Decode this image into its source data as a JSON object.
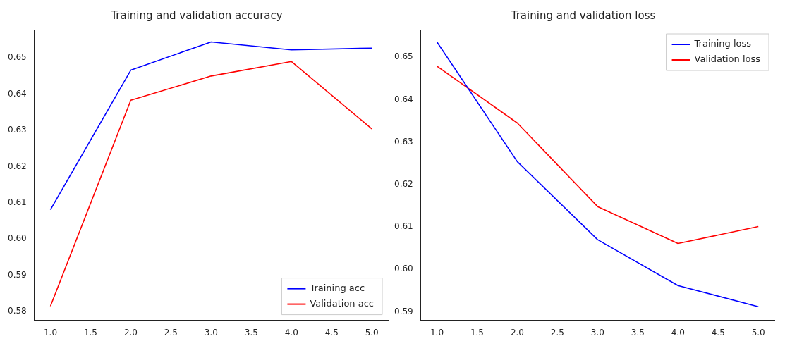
{
  "chart_data": [
    {
      "type": "line",
      "title": "Training and validation accuracy",
      "x": [
        1,
        2,
        3,
        4,
        5
      ],
      "xlim": [
        0.8,
        5.2
      ],
      "xticks": [
        {
          "value": 1,
          "label": "1.0"
        },
        {
          "value": 1.5,
          "label": "1.5"
        },
        {
          "value": 2,
          "label": "2.0"
        },
        {
          "value": 2.5,
          "label": "2.5"
        },
        {
          "value": 3,
          "label": "3.0"
        },
        {
          "value": 3.5,
          "label": "3.5"
        },
        {
          "value": 4,
          "label": "4.0"
        },
        {
          "value": 4.5,
          "label": "4.5"
        },
        {
          "value": 5,
          "label": "5.0"
        }
      ],
      "ylim": [
        0.5776,
        0.6578
      ],
      "yticks": [
        {
          "value": 0.58,
          "label": "0.58"
        },
        {
          "value": 0.59,
          "label": "0.59"
        },
        {
          "value": 0.6,
          "label": "0.60"
        },
        {
          "value": 0.61,
          "label": "0.61"
        },
        {
          "value": 0.62,
          "label": "0.62"
        },
        {
          "value": 0.63,
          "label": "0.63"
        },
        {
          "value": 0.64,
          "label": "0.64"
        },
        {
          "value": 0.65,
          "label": "0.65"
        }
      ],
      "legend": "bottom right",
      "grid": false,
      "marker": "none",
      "line_style": "solid",
      "series": [
        {
          "name": "Training acc",
          "color": "#0000ff",
          "values": [
            0.6081,
            0.6466,
            0.6544,
            0.6522,
            0.6527
          ]
        },
        {
          "name": "Validation acc",
          "color": "#ff0000",
          "values": [
            0.5815,
            0.6383,
            0.645,
            0.649,
            0.6304
          ]
        }
      ]
    },
    {
      "type": "line",
      "title": "Training and validation loss",
      "x": [
        1,
        2,
        3,
        4,
        5
      ],
      "xlim": [
        0.8,
        5.2
      ],
      "xticks": [
        {
          "value": 1,
          "label": "1.0"
        },
        {
          "value": 1.5,
          "label": "1.5"
        },
        {
          "value": 2,
          "label": "2.0"
        },
        {
          "value": 2.5,
          "label": "2.5"
        },
        {
          "value": 3,
          "label": "3.0"
        },
        {
          "value": 3.5,
          "label": "3.5"
        },
        {
          "value": 4,
          "label": "4.0"
        },
        {
          "value": 4.5,
          "label": "4.5"
        },
        {
          "value": 5,
          "label": "5.0"
        }
      ],
      "ylim": [
        0.588,
        0.6565
      ],
      "yticks": [
        {
          "value": 0.59,
          "label": "0.59"
        },
        {
          "value": 0.6,
          "label": "0.60"
        },
        {
          "value": 0.61,
          "label": "0.61"
        },
        {
          "value": 0.62,
          "label": "0.62"
        },
        {
          "value": 0.63,
          "label": "0.63"
        },
        {
          "value": 0.64,
          "label": "0.64"
        },
        {
          "value": 0.65,
          "label": "0.65"
        }
      ],
      "legend": "top right",
      "grid": false,
      "marker": "none",
      "line_style": "solid",
      "series": [
        {
          "name": "Training loss",
          "color": "#0000ff",
          "values": [
            0.6536,
            0.6254,
            0.607,
            0.5962,
            0.5912
          ]
        },
        {
          "name": "Validation loss",
          "color": "#ff0000",
          "values": [
            0.6479,
            0.6345,
            0.6148,
            0.6061,
            0.6101
          ]
        }
      ]
    }
  ]
}
